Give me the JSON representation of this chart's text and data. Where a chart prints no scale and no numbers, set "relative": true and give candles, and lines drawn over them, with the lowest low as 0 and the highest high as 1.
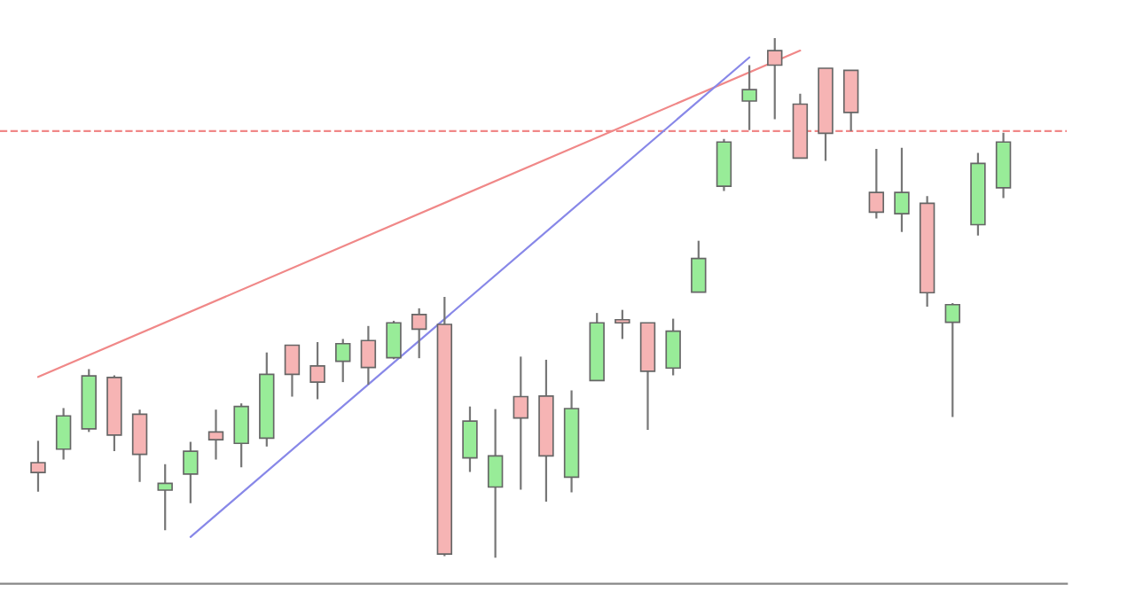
{
  "chart_data": {
    "type": "candlestick",
    "relative": true,
    "categories": [
      null,
      null,
      null,
      null,
      null,
      null,
      null,
      null,
      null,
      null,
      null,
      null,
      null,
      null,
      null,
      null,
      null,
      null,
      null,
      null,
      null,
      null,
      null,
      null,
      null,
      null,
      null,
      null,
      null,
      null,
      null,
      null,
      null,
      null,
      null,
      null,
      null,
      null,
      null
    ],
    "ohlc": [
      [
        0.183,
        0.225,
        0.127,
        0.164
      ],
      [
        0.209,
        0.288,
        0.189,
        0.273
      ],
      [
        0.248,
        0.363,
        0.242,
        0.35
      ],
      [
        0.347,
        0.351,
        0.205,
        0.236
      ],
      [
        0.276,
        0.285,
        0.146,
        0.199
      ],
      [
        0.13,
        0.18,
        0.053,
        0.143
      ],
      [
        0.161,
        0.223,
        0.105,
        0.205
      ],
      [
        0.242,
        0.285,
        0.189,
        0.227
      ],
      [
        0.22,
        0.297,
        0.174,
        0.291
      ],
      [
        0.23,
        0.395,
        0.214,
        0.353
      ],
      [
        0.409,
        0.409,
        0.31,
        0.353
      ],
      [
        0.369,
        0.415,
        0.305,
        0.338
      ],
      [
        0.378,
        0.421,
        0.338,
        0.412
      ],
      [
        0.418,
        0.446,
        0.333,
        0.366
      ],
      [
        0.385,
        0.456,
        0.382,
        0.452
      ],
      [
        0.468,
        0.48,
        0.384,
        0.44
      ],
      [
        0.449,
        0.502,
        0.003,
        0.007
      ],
      [
        0.192,
        0.291,
        0.165,
        0.263
      ],
      [
        0.136,
        0.286,
        0.0,
        0.196
      ],
      [
        0.31,
        0.387,
        0.131,
        0.269
      ],
      [
        0.311,
        0.381,
        0.108,
        0.196
      ],
      [
        0.155,
        0.322,
        0.126,
        0.287
      ],
      [
        0.341,
        0.471,
        0.341,
        0.452
      ],
      [
        0.458,
        0.477,
        0.421,
        0.452
      ],
      [
        0.452,
        0.452,
        0.246,
        0.359
      ],
      [
        0.365,
        0.46,
        0.351,
        0.436
      ],
      [
        0.511,
        0.61,
        0.511,
        0.576
      ],
      [
        0.715,
        0.806,
        0.706,
        0.8
      ],
      [
        0.879,
        0.948,
        0.823,
        0.901
      ],
      [
        0.976,
        1.0,
        0.844,
        0.948
      ],
      [
        0.873,
        0.893,
        0.769,
        0.769
      ],
      [
        0.942,
        0.942,
        0.764,
        0.817
      ],
      [
        0.938,
        0.938,
        0.821,
        0.857
      ],
      [
        0.703,
        0.787,
        0.653,
        0.665
      ],
      [
        0.662,
        0.789,
        0.627,
        0.703
      ],
      [
        0.682,
        0.696,
        0.483,
        0.51
      ],
      [
        0.453,
        0.49,
        0.271,
        0.487
      ],
      [
        0.641,
        0.779,
        0.62,
        0.759
      ],
      [
        0.712,
        0.818,
        0.692,
        0.8
      ]
    ],
    "colors": [
      "#f6b4b4",
      "#98ec98",
      "#98ec98",
      "#f6b4b4",
      "#f6b4b4",
      "#98ec98",
      "#98ec98",
      "#f6b4b4",
      "#98ec98",
      "#98ec98",
      "#f6b4b4",
      "#f6b4b4",
      "#98ec98",
      "#f6b4b4",
      "#98ec98",
      "#f6b4b4",
      "#f6b4b4",
      "#98ec98",
      "#98ec98",
      "#f6b4b4",
      "#f6b4b4",
      "#98ec98",
      "#98ec98",
      "#f6b4b4",
      "#f6b4b4",
      "#98ec98",
      "#98ec98",
      "#98ec98",
      "#98ec98",
      "#f6b4b4",
      "#f6b4b4",
      "#f6b4b4",
      "#f6b4b4",
      "#f6b4b4",
      "#98ec98",
      "#f6b4b4",
      "#98ec98",
      "#98ec98",
      "#98ec98"
    ],
    "series": [
      {
        "type": "line",
        "color": "#f08888",
        "values": [
          0.348,
          null,
          null,
          null,
          null,
          null,
          null,
          null,
          null,
          null,
          null,
          null,
          null,
          null,
          null,
          null,
          null,
          null,
          null,
          null,
          null,
          null,
          null,
          null,
          null,
          null,
          null,
          null,
          null,
          null,
          0.976,
          null,
          null,
          null,
          null,
          null,
          null,
          null,
          null
        ]
      },
      {
        "type": "line",
        "color": "#8888e8",
        "values": [
          null,
          null,
          null,
          null,
          null,
          null,
          0.04,
          null,
          null,
          null,
          null,
          null,
          null,
          null,
          null,
          null,
          null,
          null,
          null,
          null,
          null,
          null,
          null,
          null,
          null,
          null,
          null,
          null,
          0.963,
          null,
          null,
          null,
          null,
          null,
          null,
          null,
          null,
          null,
          null
        ]
      }
    ],
    "ref_lines": [
      {
        "axis": "y",
        "value": 0.821,
        "color": "#f08888",
        "line_style": "dashed"
      }
    ],
    "grid": false,
    "legend": false
  }
}
